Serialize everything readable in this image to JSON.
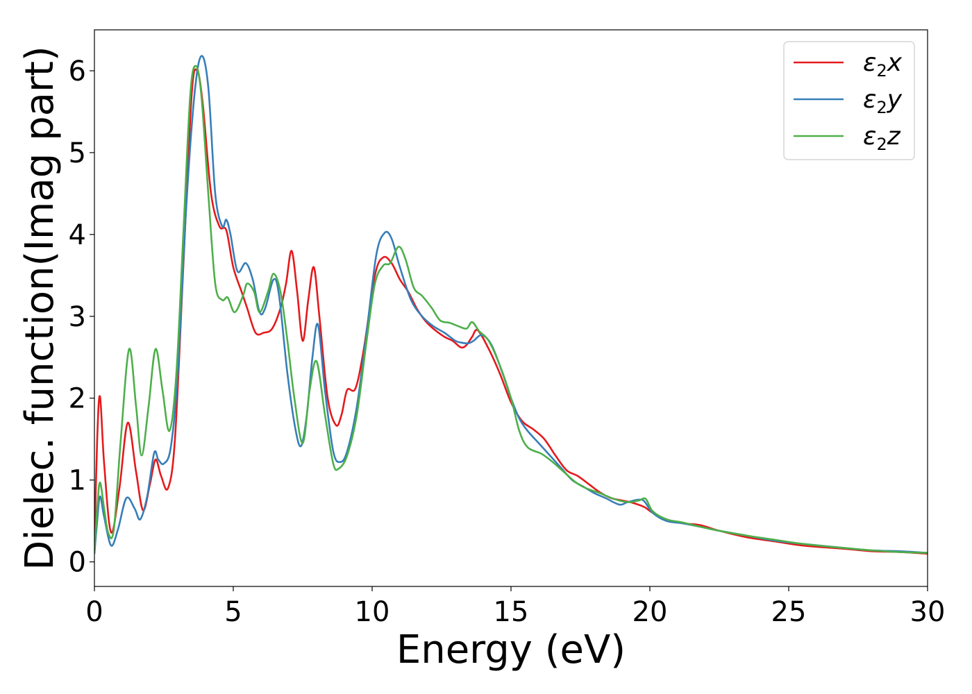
{
  "chart_data": {
    "type": "line",
    "xlabel": "Energy (eV)",
    "ylabel": "Dielec. function(Imag part)",
    "xlim": [
      0,
      30
    ],
    "ylim": [
      -0.3,
      6.5
    ],
    "xticks": [
      0,
      5,
      10,
      15,
      20,
      25,
      30
    ],
    "yticks": [
      0,
      1,
      2,
      3,
      4,
      5,
      6
    ],
    "grid": false,
    "legend_position": "top-right",
    "series": [
      {
        "name": "ε2x",
        "legend_base": "ε",
        "legend_sub": "2",
        "legend_suffix": "x",
        "color": "#e41a1c",
        "points": [
          [
            0,
            0.2
          ],
          [
            0.1,
            1.5
          ],
          [
            0.2,
            2.02
          ],
          [
            0.35,
            1.2
          ],
          [
            0.6,
            0.36
          ],
          [
            0.9,
            0.9
          ],
          [
            1.2,
            1.7
          ],
          [
            1.5,
            1.1
          ],
          [
            1.75,
            0.63
          ],
          [
            2.0,
            0.95
          ],
          [
            2.2,
            1.25
          ],
          [
            2.4,
            1.05
          ],
          [
            2.65,
            0.9
          ],
          [
            2.9,
            1.5
          ],
          [
            3.2,
            3.6
          ],
          [
            3.5,
            5.7
          ],
          [
            3.7,
            6.0
          ],
          [
            3.9,
            5.6
          ],
          [
            4.2,
            4.5
          ],
          [
            4.5,
            4.1
          ],
          [
            4.75,
            4.05
          ],
          [
            5.0,
            3.6
          ],
          [
            5.3,
            3.3
          ],
          [
            5.5,
            3.1
          ],
          [
            5.8,
            2.8
          ],
          [
            6.1,
            2.8
          ],
          [
            6.4,
            2.85
          ],
          [
            6.7,
            3.1
          ],
          [
            6.9,
            3.4
          ],
          [
            7.1,
            3.8
          ],
          [
            7.3,
            3.3
          ],
          [
            7.5,
            2.7
          ],
          [
            7.7,
            3.2
          ],
          [
            7.9,
            3.6
          ],
          [
            8.1,
            3.0
          ],
          [
            8.4,
            2.0
          ],
          [
            8.7,
            1.67
          ],
          [
            8.9,
            1.8
          ],
          [
            9.1,
            2.1
          ],
          [
            9.4,
            2.12
          ],
          [
            9.7,
            2.6
          ],
          [
            10.1,
            3.5
          ],
          [
            10.4,
            3.72
          ],
          [
            10.7,
            3.65
          ],
          [
            11.0,
            3.45
          ],
          [
            11.3,
            3.3
          ],
          [
            11.6,
            3.1
          ],
          [
            11.9,
            2.95
          ],
          [
            12.2,
            2.85
          ],
          [
            12.6,
            2.75
          ],
          [
            12.9,
            2.7
          ],
          [
            13.2,
            2.62
          ],
          [
            13.4,
            2.65
          ],
          [
            13.6,
            2.75
          ],
          [
            13.8,
            2.83
          ],
          [
            14.2,
            2.6
          ],
          [
            14.6,
            2.3
          ],
          [
            15.0,
            1.95
          ],
          [
            15.4,
            1.72
          ],
          [
            15.8,
            1.62
          ],
          [
            16.2,
            1.5
          ],
          [
            16.6,
            1.3
          ],
          [
            17.0,
            1.12
          ],
          [
            17.4,
            1.05
          ],
          [
            17.8,
            0.95
          ],
          [
            18.2,
            0.85
          ],
          [
            18.6,
            0.78
          ],
          [
            19.0,
            0.75
          ],
          [
            19.4,
            0.72
          ],
          [
            19.8,
            0.67
          ],
          [
            20.1,
            0.6
          ],
          [
            20.6,
            0.52
          ],
          [
            21.2,
            0.47
          ],
          [
            21.8,
            0.45
          ],
          [
            22.5,
            0.38
          ],
          [
            23.5,
            0.3
          ],
          [
            24.5,
            0.25
          ],
          [
            25.5,
            0.2
          ],
          [
            27,
            0.16
          ],
          [
            28,
            0.13
          ],
          [
            29,
            0.12
          ],
          [
            30,
            0.1
          ]
        ]
      },
      {
        "name": "ε2y",
        "legend_base": "ε",
        "legend_sub": "2",
        "legend_suffix": "y",
        "color": "#377eb8",
        "points": [
          [
            0,
            0.1
          ],
          [
            0.1,
            0.5
          ],
          [
            0.2,
            0.8
          ],
          [
            0.35,
            0.55
          ],
          [
            0.6,
            0.2
          ],
          [
            0.85,
            0.4
          ],
          [
            1.15,
            0.78
          ],
          [
            1.45,
            0.65
          ],
          [
            1.65,
            0.52
          ],
          [
            1.9,
            0.8
          ],
          [
            2.15,
            1.33
          ],
          [
            2.3,
            1.25
          ],
          [
            2.5,
            1.2
          ],
          [
            2.75,
            1.4
          ],
          [
            3.0,
            2.3
          ],
          [
            3.3,
            4.3
          ],
          [
            3.6,
            5.7
          ],
          [
            3.85,
            6.18
          ],
          [
            4.1,
            5.8
          ],
          [
            4.35,
            4.5
          ],
          [
            4.6,
            4.1
          ],
          [
            4.75,
            4.18
          ],
          [
            4.9,
            4.0
          ],
          [
            5.15,
            3.55
          ],
          [
            5.45,
            3.65
          ],
          [
            5.7,
            3.45
          ],
          [
            5.95,
            3.05
          ],
          [
            6.15,
            3.1
          ],
          [
            6.45,
            3.45
          ],
          [
            6.65,
            3.25
          ],
          [
            6.95,
            2.3
          ],
          [
            7.25,
            1.6
          ],
          [
            7.45,
            1.42
          ],
          [
            7.65,
            1.8
          ],
          [
            7.85,
            2.5
          ],
          [
            8.05,
            2.9
          ],
          [
            8.3,
            2.1
          ],
          [
            8.6,
            1.35
          ],
          [
            8.85,
            1.22
          ],
          [
            9.1,
            1.35
          ],
          [
            9.45,
            1.9
          ],
          [
            9.8,
            2.8
          ],
          [
            10.15,
            3.75
          ],
          [
            10.45,
            4.02
          ],
          [
            10.7,
            3.95
          ],
          [
            11.0,
            3.6
          ],
          [
            11.4,
            3.2
          ],
          [
            11.8,
            3.0
          ],
          [
            12.2,
            2.88
          ],
          [
            12.6,
            2.8
          ],
          [
            13.0,
            2.7
          ],
          [
            13.2,
            2.68
          ],
          [
            13.45,
            2.67
          ],
          [
            13.65,
            2.7
          ],
          [
            13.95,
            2.77
          ],
          [
            14.3,
            2.65
          ],
          [
            14.7,
            2.3
          ],
          [
            15.0,
            2.0
          ],
          [
            15.3,
            1.75
          ],
          [
            15.6,
            1.6
          ],
          [
            16.0,
            1.45
          ],
          [
            16.4,
            1.3
          ],
          [
            16.8,
            1.15
          ],
          [
            17.2,
            1.0
          ],
          [
            17.6,
            0.92
          ],
          [
            18.0,
            0.84
          ],
          [
            18.4,
            0.78
          ],
          [
            18.9,
            0.7
          ],
          [
            19.2,
            0.73
          ],
          [
            19.6,
            0.76
          ],
          [
            19.8,
            0.74
          ],
          [
            20.1,
            0.6
          ],
          [
            20.6,
            0.5
          ],
          [
            21.2,
            0.47
          ],
          [
            21.8,
            0.43
          ],
          [
            22.5,
            0.38
          ],
          [
            23.5,
            0.32
          ],
          [
            24.5,
            0.26
          ],
          [
            25.5,
            0.22
          ],
          [
            27,
            0.17
          ],
          [
            28,
            0.14
          ],
          [
            29,
            0.13
          ],
          [
            30,
            0.11
          ]
        ]
      },
      {
        "name": "ε2z",
        "legend_base": "ε",
        "legend_sub": "2",
        "legend_suffix": "z",
        "color": "#4daf4a",
        "points": [
          [
            0,
            0.1
          ],
          [
            0.1,
            0.65
          ],
          [
            0.2,
            0.97
          ],
          [
            0.35,
            0.65
          ],
          [
            0.5,
            0.35
          ],
          [
            0.7,
            0.4
          ],
          [
            0.95,
            1.5
          ],
          [
            1.25,
            2.6
          ],
          [
            1.5,
            1.9
          ],
          [
            1.7,
            1.3
          ],
          [
            1.95,
            1.9
          ],
          [
            2.2,
            2.6
          ],
          [
            2.45,
            2.1
          ],
          [
            2.7,
            1.6
          ],
          [
            2.95,
            2.3
          ],
          [
            3.2,
            4.0
          ],
          [
            3.45,
            5.7
          ],
          [
            3.65,
            6.06
          ],
          [
            3.85,
            5.7
          ],
          [
            4.1,
            4.5
          ],
          [
            4.35,
            3.4
          ],
          [
            4.6,
            3.2
          ],
          [
            4.8,
            3.23
          ],
          [
            5.05,
            3.05
          ],
          [
            5.35,
            3.25
          ],
          [
            5.5,
            3.4
          ],
          [
            5.75,
            3.3
          ],
          [
            5.95,
            3.05
          ],
          [
            6.25,
            3.3
          ],
          [
            6.45,
            3.52
          ],
          [
            6.7,
            3.3
          ],
          [
            6.95,
            2.7
          ],
          [
            7.2,
            2.0
          ],
          [
            7.5,
            1.45
          ],
          [
            7.75,
            2.1
          ],
          [
            8.0,
            2.45
          ],
          [
            8.3,
            1.8
          ],
          [
            8.6,
            1.2
          ],
          [
            8.8,
            1.14
          ],
          [
            9.1,
            1.3
          ],
          [
            9.45,
            1.8
          ],
          [
            9.8,
            2.7
          ],
          [
            10.1,
            3.4
          ],
          [
            10.4,
            3.62
          ],
          [
            10.65,
            3.65
          ],
          [
            10.95,
            3.85
          ],
          [
            11.2,
            3.7
          ],
          [
            11.5,
            3.35
          ],
          [
            11.8,
            3.25
          ],
          [
            12.15,
            3.1
          ],
          [
            12.45,
            2.95
          ],
          [
            12.8,
            2.92
          ],
          [
            13.1,
            2.88
          ],
          [
            13.4,
            2.85
          ],
          [
            13.6,
            2.93
          ],
          [
            13.85,
            2.82
          ],
          [
            14.2,
            2.7
          ],
          [
            14.6,
            2.4
          ],
          [
            15.0,
            2.0
          ],
          [
            15.3,
            1.6
          ],
          [
            15.6,
            1.4
          ],
          [
            16.1,
            1.32
          ],
          [
            16.5,
            1.22
          ],
          [
            16.9,
            1.1
          ],
          [
            17.3,
            0.98
          ],
          [
            17.7,
            0.9
          ],
          [
            18.2,
            0.84
          ],
          [
            18.7,
            0.77
          ],
          [
            19.2,
            0.73
          ],
          [
            19.6,
            0.75
          ],
          [
            19.85,
            0.77
          ],
          [
            20.1,
            0.62
          ],
          [
            20.6,
            0.52
          ],
          [
            21.2,
            0.48
          ],
          [
            21.8,
            0.43
          ],
          [
            22.5,
            0.38
          ],
          [
            23.5,
            0.32
          ],
          [
            24.5,
            0.27
          ],
          [
            25.5,
            0.22
          ],
          [
            27,
            0.17
          ],
          [
            28,
            0.14
          ],
          [
            29,
            0.12
          ],
          [
            30,
            0.11
          ]
        ]
      }
    ]
  }
}
